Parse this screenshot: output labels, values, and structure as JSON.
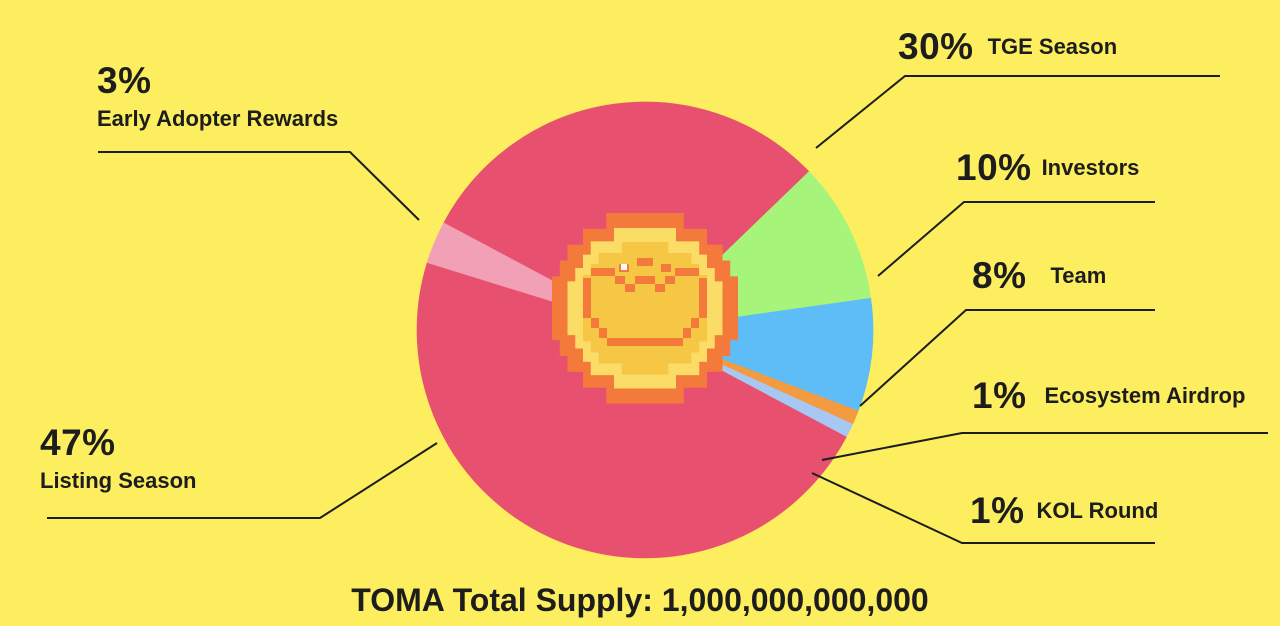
{
  "chart_data": {
    "type": "pie",
    "slices": [
      {
        "percent_label": "30%",
        "name": "TGE Season",
        "value": 30,
        "color": "#E8506F"
      },
      {
        "percent_label": "10%",
        "name": "Investors",
        "value": 10,
        "color": "#A6F57A"
      },
      {
        "percent_label": "8%",
        "name": "Team",
        "value": 8,
        "color": "#5EBDF6"
      },
      {
        "percent_label": "1%",
        "name": "Ecosystem Airdrop",
        "value": 1,
        "color": "#F29B40"
      },
      {
        "percent_label": "1%",
        "name": "KOL Round",
        "value": 1,
        "color": "#A8C8F4"
      },
      {
        "percent_label": "47%",
        "name": "Listing Season",
        "value": 47,
        "color": "#E8506F"
      },
      {
        "percent_label": "3%",
        "name": "Early Adopter Rewards",
        "value": 3,
        "color": "#F2A0B6"
      }
    ],
    "footer": "TOMA Total Supply: 1,000,000,000,000"
  },
  "colors": {
    "background": "#FCEE5E",
    "text": "#1d1d1d",
    "coin_outer": "#F37A3A",
    "coin_rim": "#FADC66",
    "coin_face": "#F6C744"
  },
  "icons": {
    "center": "pixel-coin-icon"
  }
}
